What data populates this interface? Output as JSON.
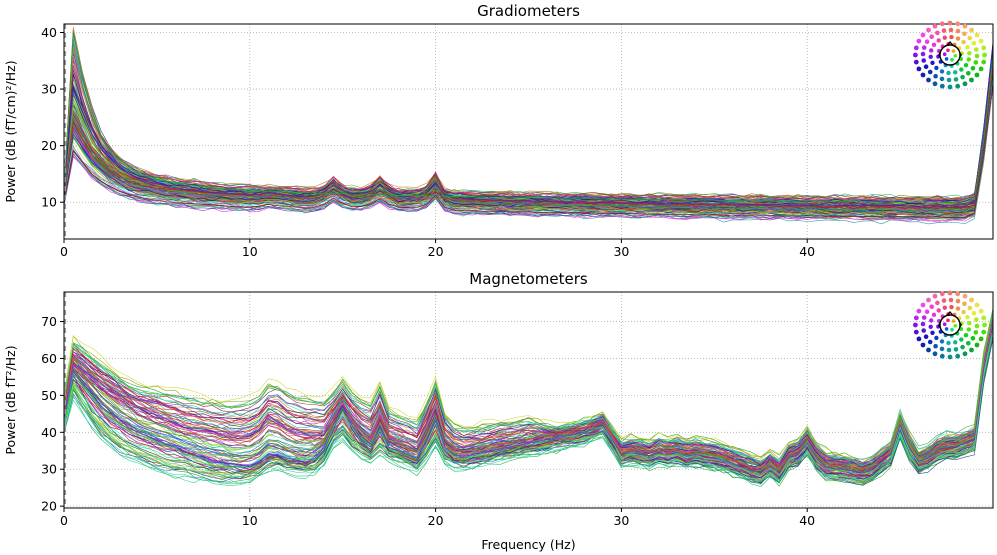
{
  "chart_data": [
    {
      "type": "line",
      "title": "Gradiometers",
      "xlabel": "",
      "ylabel": "Power (dB (fT/cm)²/Hz)",
      "xlim": [
        0,
        50
      ],
      "ylim": [
        3.5,
        41.5
      ],
      "xticks": [
        0,
        10,
        20,
        30,
        40
      ],
      "yticks": [
        10,
        20,
        30,
        40
      ],
      "grid": true,
      "legend": "sensor-layout inset, top-right",
      "x": [
        0,
        0.5,
        1,
        1.5,
        2,
        2.5,
        3,
        3.5,
        4,
        4.5,
        5,
        5.5,
        6,
        6.5,
        7,
        7.5,
        8,
        8.5,
        9,
        9.5,
        10,
        10.5,
        11,
        11.5,
        12,
        12.5,
        13,
        13.5,
        14,
        14.5,
        15,
        15.5,
        16,
        16.5,
        17,
        17.5,
        18,
        18.5,
        19,
        19.5,
        20,
        20.5,
        21,
        21.5,
        22,
        22.5,
        23,
        23.5,
        24,
        24.5,
        25,
        25.5,
        26,
        26.5,
        27,
        27.5,
        28,
        28.5,
        29,
        29.5,
        30,
        30.5,
        31,
        31.5,
        32,
        32.5,
        33,
        33.5,
        34,
        34.5,
        35,
        35.5,
        36,
        36.5,
        37,
        37.5,
        38,
        38.5,
        39,
        39.5,
        40,
        40.5,
        41,
        41.5,
        42,
        42.5,
        43,
        43.5,
        44,
        44.5,
        45,
        45.5,
        46,
        46.5,
        47,
        47.5,
        48,
        48.5,
        49,
        49.5,
        50
      ],
      "series_count": 204,
      "series_shape": "broadband 1/f spectra: peak near 0.5 Hz (about 20–40 dB), decaying to a floor of about 8–13 dB, narrow peaks at 14.5 Hz, 17 Hz and 20 Hz, steep rise above 49 Hz",
      "representative_series": [
        {
          "name": "",
          "values": [
            12,
            24,
            21,
            18.5,
            16.8,
            15.4,
            14.3,
            13.6,
            13.1,
            12.8,
            12.5,
            12.3,
            12.2,
            12,
            11.9,
            11.7,
            11.6,
            11.5,
            11.4,
            11.3,
            11.2,
            11.3,
            11.6,
            11.4,
            11.2,
            11,
            10.9,
            11.1,
            11.9,
            13.6,
            12.1,
            11.2,
            11.4,
            12.2,
            13.9,
            12.1,
            11.1,
            11,
            11.2,
            12.1,
            14.6,
            11.3,
            10.6,
            10.5,
            10.4,
            10.4,
            10.3,
            10.3,
            10.2,
            10.2,
            10.1,
            10.1,
            10.1,
            10,
            10,
            10,
            9.9,
            9.9,
            9.9,
            9.8,
            9.8,
            9.8,
            9.7,
            9.7,
            9.7,
            9.6,
            9.6,
            9.6,
            9.6,
            9.5,
            9.5,
            9.5,
            9.5,
            9.4,
            9.4,
            9.4,
            9.4,
            9.3,
            9.3,
            9.3,
            9.3,
            9.3,
            9.2,
            9.2,
            9.2,
            9.2,
            9.2,
            9.2,
            9.1,
            9.1,
            9.1,
            9.1,
            9.1,
            9.1,
            9.1,
            9,
            9,
            9,
            9.5,
            20,
            34
          ]
        },
        {
          "name": "",
          "values": [
            12,
            30,
            26,
            22,
            19.5,
            17.6,
            16.2,
            15.1,
            14.3,
            13.7,
            13.2,
            12.9,
            12.6,
            12.3,
            12.1,
            11.9,
            11.7,
            11.6,
            11.5,
            11.4,
            11.3,
            11.4,
            11.7,
            11.5,
            11.3,
            11.1,
            11,
            11.2,
            11.8,
            13.1,
            12,
            11.3,
            11.4,
            11.9,
            13,
            11.9,
            11.1,
            11,
            11.2,
            11.8,
            13.5,
            11.2,
            10.7,
            10.6,
            10.5,
            10.5,
            10.4,
            10.4,
            10.3,
            10.3,
            10.3,
            10.2,
            10.2,
            10.2,
            10.1,
            10.1,
            10.1,
            10,
            10,
            10,
            9.9,
            9.9,
            9.9,
            9.9,
            9.8,
            9.8,
            9.8,
            9.8,
            9.7,
            9.7,
            9.7,
            9.7,
            9.7,
            9.6,
            9.6,
            9.6,
            9.6,
            9.6,
            9.5,
            9.5,
            9.5,
            9.5,
            9.5,
            9.5,
            9.4,
            9.4,
            9.4,
            9.4,
            9.4,
            9.4,
            9.4,
            9.3,
            9.3,
            9.3,
            9.3,
            9.3,
            9.3,
            9.3,
            10,
            22,
            37
          ]
        },
        {
          "name": "",
          "values": [
            12,
            40,
            32,
            26,
            21.5,
            18.9,
            17.2,
            16,
            15.2,
            14.6,
            14.1,
            13.7,
            13.4,
            13.1,
            12.9,
            12.7,
            12.6,
            12.4,
            12.3,
            12.2,
            12.1,
            12,
            11.9,
            11.9,
            11.8,
            11.7,
            11.7,
            11.6,
            11.6,
            11.5,
            11.5,
            11.4,
            11.4,
            11.4,
            11.3,
            11.3,
            11.2,
            11.2,
            11.2,
            11.1,
            11.1,
            11.1,
            11,
            11,
            11,
            10.9,
            10.9,
            10.9,
            10.9,
            10.8,
            10.8,
            10.8,
            10.8,
            10.7,
            10.7,
            10.7,
            10.7,
            10.6,
            10.6,
            10.6,
            10.6,
            10.5,
            10.5,
            10.5,
            10.5,
            10.5,
            10.4,
            10.4,
            10.4,
            10.4,
            10.4,
            10.3,
            10.3,
            10.3,
            10.3,
            10.3,
            10.2,
            10.2,
            10.2,
            10.2,
            10.2,
            10.2,
            10.1,
            10.1,
            10.1,
            10.1,
            10.1,
            10.1,
            10,
            10,
            10,
            10,
            10,
            10,
            10,
            9.9,
            9.9,
            9.9,
            10.5,
            21,
            36
          ]
        },
        {
          "name": "",
          "values": [
            10,
            19,
            17,
            15,
            13.7,
            12.7,
            11.9,
            11.3,
            10.9,
            10.6,
            10.3,
            10.1,
            9.9,
            9.8,
            9.7,
            9.6,
            9.5,
            9.4,
            9.3,
            9.2,
            9.2,
            9.3,
            9.6,
            9.4,
            9.3,
            9.1,
            9,
            9.1,
            9.6,
            10.7,
            9.8,
            9.2,
            9.3,
            9.7,
            10.6,
            9.7,
            9.1,
            9,
            9.1,
            9.6,
            11.2,
            9.1,
            8.6,
            8.5,
            8.5,
            8.4,
            8.4,
            8.4,
            8.3,
            8.3,
            8.3,
            8.2,
            8.2,
            8.2,
            8.1,
            8.1,
            8.1,
            8.1,
            8,
            8,
            8,
            8,
            7.9,
            7.9,
            7.9,
            7.9,
            7.8,
            7.8,
            7.8,
            7.8,
            7.8,
            7.7,
            7.7,
            7.7,
            7.7,
            7.7,
            7.6,
            7.6,
            7.6,
            7.6,
            7.6,
            7.6,
            7.5,
            7.5,
            7.5,
            7.5,
            7.5,
            7.5,
            7.4,
            7.4,
            7.4,
            7.4,
            7.4,
            7.4,
            7.4,
            7.3,
            7.3,
            7.3,
            8,
            18,
            31
          ]
        }
      ]
    },
    {
      "type": "line",
      "title": "Magnetometers",
      "xlabel": "Frequency (Hz)",
      "ylabel": "Power (dB fT²/Hz)",
      "xlim": [
        0,
        50
      ],
      "ylim": [
        19.5,
        78
      ],
      "xticks": [
        0,
        10,
        20,
        30,
        40
      ],
      "yticks": [
        20,
        30,
        40,
        50,
        60,
        70
      ],
      "grid": true,
      "legend": "sensor-layout inset, top-right",
      "x": [
        0,
        0.5,
        1,
        1.5,
        2,
        2.5,
        3,
        3.5,
        4,
        4.5,
        5,
        5.5,
        6,
        6.5,
        7,
        7.5,
        8,
        8.5,
        9,
        9.5,
        10,
        10.5,
        11,
        11.5,
        12,
        12.5,
        13,
        13.5,
        14,
        14.5,
        15,
        15.5,
        16,
        16.5,
        17,
        17.5,
        18,
        18.5,
        19,
        19.5,
        20,
        20.5,
        21,
        21.5,
        22,
        22.5,
        23,
        23.5,
        24,
        24.5,
        25,
        25.5,
        26,
        26.5,
        27,
        27.5,
        28,
        28.5,
        29,
        29.5,
        30,
        30.5,
        31,
        31.5,
        32,
        32.5,
        33,
        33.5,
        34,
        34.5,
        35,
        35.5,
        36,
        36.5,
        37,
        37.5,
        38,
        38.5,
        39,
        39.5,
        40,
        40.5,
        41,
        41.5,
        42,
        42.5,
        43,
        43.5,
        44,
        44.5,
        45,
        45.5,
        46,
        46.5,
        47,
        47.5,
        48,
        48.5,
        49,
        49.5,
        50
      ],
      "series_count": 102,
      "series_shape": "spectra peaking near 0.5 Hz (about 55–64 dB), decaying to about 28–40 dB, peaks near 11 Hz, 14.5 Hz, 17 Hz, 20 Hz, 29 Hz and 45 Hz, steep rise above 49 Hz",
      "representative_series": [
        {
          "name": "",
          "values": [
            48,
            64,
            62,
            60,
            58,
            56,
            54,
            52.5,
            51.5,
            51,
            50.5,
            50,
            49.5,
            49,
            48.5,
            48,
            47.5,
            47,
            47,
            47,
            47.5,
            49,
            52,
            52,
            50,
            49,
            48.5,
            48,
            47.5,
            50,
            53,
            50,
            48,
            47,
            52,
            45,
            44,
            43,
            42,
            47,
            53,
            44,
            41,
            40,
            40.5,
            41,
            41.5,
            42,
            42,
            42.5,
            43,
            42,
            41,
            40.5,
            41,
            41.5,
            42,
            43,
            44,
            40,
            37,
            38,
            37.5,
            37,
            38,
            37.5,
            38,
            37,
            37.5,
            37,
            36.5,
            36,
            35,
            34,
            33,
            32,
            34,
            32,
            36,
            37,
            40,
            36,
            34,
            33,
            33,
            32,
            31,
            32,
            34,
            36,
            44,
            38,
            34,
            35,
            37,
            38,
            38,
            39,
            40,
            60,
            72
          ]
        },
        {
          "name": "",
          "values": [
            46,
            60,
            58,
            56,
            54,
            52.5,
            51,
            49.5,
            48,
            46.5,
            45.5,
            44.5,
            43.5,
            42.5,
            42,
            41.5,
            41,
            40.5,
            40,
            40,
            40.5,
            42,
            45,
            44,
            42,
            41,
            40.5,
            40,
            40,
            44,
            48,
            44,
            41,
            39,
            45,
            39,
            38,
            37,
            36,
            41,
            47,
            38,
            35.5,
            35,
            35.5,
            36,
            36.5,
            37,
            37,
            37.5,
            38,
            38.5,
            39,
            39.5,
            40,
            40.5,
            41,
            42,
            43,
            39,
            35,
            35.5,
            35,
            34.5,
            35.5,
            35,
            35.5,
            34.5,
            35,
            34.5,
            34,
            33.5,
            32.5,
            31.5,
            30.5,
            30,
            32,
            30,
            34,
            35,
            38,
            34,
            31.5,
            31,
            31,
            30.5,
            30,
            31,
            33,
            35,
            43,
            37,
            33,
            34,
            36,
            37,
            37,
            38,
            39,
            58,
            70
          ]
        },
        {
          "name": "",
          "values": [
            44,
            57,
            54,
            51,
            48,
            45.5,
            43.5,
            42,
            40.5,
            39.5,
            38.5,
            37.5,
            36.5,
            35.5,
            34.5,
            33.5,
            32.5,
            32,
            31.5,
            31,
            31,
            32,
            34,
            34,
            33,
            32.5,
            32,
            33,
            36,
            42,
            47,
            42,
            38,
            36,
            42,
            36,
            35,
            34,
            33,
            38,
            44,
            36,
            34,
            33.5,
            34,
            34.5,
            35,
            35.5,
            36,
            36.5,
            37,
            37.5,
            38,
            38.5,
            39,
            39.5,
            40,
            41,
            42,
            38,
            34,
            34.5,
            34,
            33.5,
            34.5,
            34,
            34.5,
            33.5,
            34,
            33.5,
            33,
            32.5,
            31.5,
            30.5,
            29.5,
            29,
            31,
            29,
            33,
            34,
            37,
            33,
            30.5,
            30,
            30,
            29.5,
            29,
            30,
            32,
            34,
            42,
            36,
            32,
            33,
            35,
            36,
            36,
            37,
            38,
            57,
            69
          ]
        },
        {
          "name": "",
          "values": [
            42,
            52,
            48,
            44,
            41,
            38.5,
            36.5,
            35,
            34,
            33,
            32,
            31,
            30.5,
            30,
            29.5,
            29,
            28.5,
            28,
            28,
            28,
            28.5,
            29.5,
            31.5,
            32,
            31,
            30.5,
            30,
            31,
            33,
            38,
            40,
            37,
            35,
            33.5,
            36,
            34,
            33,
            32,
            31,
            34,
            38,
            33,
            32,
            31.5,
            32,
            32.5,
            33,
            33.5,
            34,
            34.5,
            35,
            35.5,
            36,
            36.5,
            37,
            37.5,
            38,
            39,
            40,
            36,
            32,
            32.5,
            32,
            31.5,
            32.5,
            32,
            32.5,
            31.5,
            32,
            31.5,
            31,
            30.5,
            29.5,
            28.5,
            27.5,
            27,
            29,
            27,
            31,
            32,
            35,
            31,
            28.5,
            28,
            28,
            27.5,
            27,
            28,
            30,
            32,
            40,
            34,
            30,
            31,
            33,
            34,
            34,
            35,
            36,
            55,
            67
          ]
        }
      ]
    }
  ]
}
